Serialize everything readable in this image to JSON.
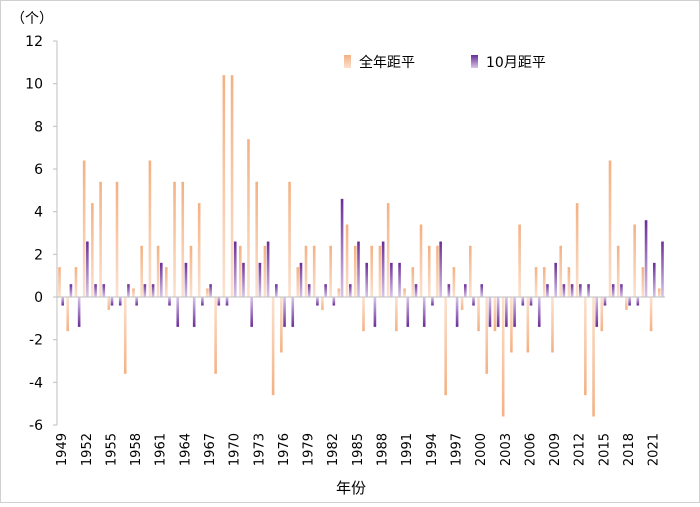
{
  "chart_data": {
    "type": "bar",
    "unit_label": "（个）",
    "xlabel": "年份",
    "ylabel": "",
    "ylim": [
      -6,
      12
    ],
    "yticks": [
      -6,
      -4,
      -2,
      0,
      2,
      4,
      6,
      8,
      10,
      12
    ],
    "legend_position": "top-right",
    "grid": false,
    "categories": [
      1949,
      1950,
      1951,
      1952,
      1953,
      1954,
      1955,
      1956,
      1957,
      1958,
      1959,
      1960,
      1961,
      1962,
      1963,
      1964,
      1965,
      1966,
      1967,
      1968,
      1969,
      1970,
      1971,
      1972,
      1973,
      1974,
      1975,
      1976,
      1977,
      1978,
      1979,
      1980,
      1981,
      1982,
      1983,
      1984,
      1985,
      1986,
      1987,
      1988,
      1989,
      1990,
      1991,
      1992,
      1993,
      1994,
      1995,
      1996,
      1997,
      1998,
      1999,
      2000,
      2001,
      2002,
      2003,
      2004,
      2005,
      2006,
      2007,
      2008,
      2009,
      2010,
      2011,
      2012,
      2013,
      2014,
      2015,
      2016,
      2017,
      2018,
      2019,
      2020,
      2021,
      2022
    ],
    "xtick_labels": [
      "1949",
      "1952",
      "1955",
      "1958",
      "1961",
      "1964",
      "1967",
      "1970",
      "1973",
      "1976",
      "1979",
      "1982",
      "1985",
      "1988",
      "1991",
      "1994",
      "1997",
      "2000",
      "2003",
      "2006",
      "2009",
      "2012",
      "2015",
      "2018",
      "2021"
    ],
    "series": [
      {
        "name": "全年距平",
        "color": "#f4b183",
        "values": [
          1.4,
          -1.6,
          1.4,
          6.4,
          4.4,
          5.4,
          -0.6,
          5.4,
          -3.6,
          0.4,
          2.4,
          6.4,
          2.4,
          1.4,
          5.4,
          5.4,
          2.4,
          4.4,
          0.4,
          -3.6,
          10.4,
          10.4,
          2.4,
          7.4,
          5.4,
          2.4,
          -4.6,
          -2.6,
          5.4,
          1.4,
          2.4,
          2.4,
          -0.6,
          2.4,
          0.4,
          3.4,
          2.4,
          -1.6,
          2.4,
          2.4,
          4.4,
          -1.6,
          0.4,
          1.4,
          3.4,
          2.4,
          2.4,
          -4.6,
          1.4,
          -0.6,
          2.4,
          -1.6,
          -3.6,
          -1.6,
          -5.6,
          -2.6,
          3.4,
          -2.6,
          1.4,
          1.4,
          -2.6,
          2.4,
          1.4,
          4.4,
          -4.6,
          -5.6,
          -1.6,
          6.4,
          2.4,
          -0.6,
          3.4,
          1.4,
          -1.6,
          0.4
        ]
      },
      {
        "name": "10月距平",
        "color": "#7030a0",
        "values": [
          -0.4,
          0.6,
          -1.4,
          2.6,
          0.6,
          0.6,
          -0.4,
          -0.4,
          0.6,
          -0.4,
          0.6,
          0.6,
          1.6,
          -0.4,
          -1.4,
          1.6,
          -1.4,
          -0.4,
          0.6,
          -0.4,
          -0.4,
          2.6,
          1.6,
          -1.4,
          1.6,
          2.6,
          0.6,
          -1.4,
          -1.4,
          1.6,
          0.6,
          -0.4,
          0.6,
          -0.4,
          4.6,
          0.6,
          2.6,
          1.6,
          -1.4,
          2.6,
          1.6,
          1.6,
          -1.4,
          0.6,
          -1.4,
          -0.4,
          2.6,
          0.6,
          -1.4,
          0.6,
          -0.4,
          0.6,
          -1.4,
          -1.4,
          -1.4,
          -1.4,
          -0.4,
          -0.4,
          -1.4,
          0.6,
          1.6,
          0.6,
          0.6,
          0.6,
          0.6,
          -1.4,
          -0.4,
          0.6,
          0.6,
          -0.4,
          -0.4,
          3.6,
          1.6,
          2.6
        ]
      }
    ]
  }
}
